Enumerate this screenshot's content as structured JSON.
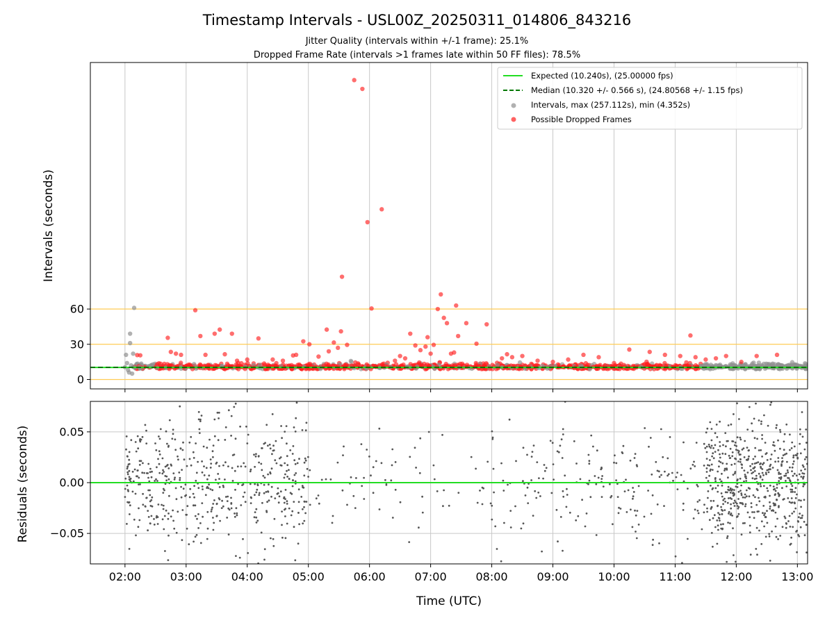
{
  "chart_data": {
    "title": "Timestamp Intervals - USL00Z_20250311_014806_843216",
    "subtitles": [
      "Jitter Quality (intervals within +/-1 frame): 25.1%",
      "Dropped Frame Rate (intervals >1 frames late within 50 FF files): 78.5%"
    ],
    "x_axis": {
      "label": "Time (UTC)",
      "type": "time",
      "range": [
        "01:26",
        "13:10"
      ],
      "ticks": [
        "02:00",
        "03:00",
        "04:00",
        "05:00",
        "06:00",
        "07:00",
        "08:00",
        "09:00",
        "10:00",
        "11:00",
        "12:00",
        "13:00"
      ],
      "grid": true
    },
    "panels": [
      {
        "type": "scatter",
        "ylabel": "Intervals (seconds)",
        "ylim": [
          -8,
          270
        ],
        "y_ticks": [
          "0",
          "30",
          "60"
        ],
        "y_tick_values": [
          0,
          30,
          60
        ],
        "reference_lines": [
          0,
          30,
          60
        ],
        "reference_color": "#ffcc55",
        "legend_position": "top-right",
        "series": [
          {
            "name": "Expected (10.240s), (25.00000 fps)",
            "kind": "hline",
            "value": 10.24,
            "color": "#22dd22",
            "style": "solid"
          },
          {
            "name": "Median (10.320 +/- 0.566 s), (24.80568 +/- 1.15 fps)",
            "kind": "hline",
            "value": 10.32,
            "color": "#007700",
            "style": "dashed"
          },
          {
            "name": "Intervals, max (257.112s), min (4.352s)",
            "kind": "scatter",
            "color": "#909090",
            "points": [
              [
                "02:00",
                10.5
              ],
              [
                "02:01",
                21
              ],
              [
                "02:02",
                14
              ],
              [
                "02:03",
                8
              ],
              [
                "02:04",
                6
              ],
              [
                "02:05",
                39
              ],
              [
                "02:05",
                31
              ],
              [
                "02:06",
                12
              ],
              [
                "02:07",
                5
              ],
              [
                "02:08",
                22
              ],
              [
                "02:09",
                61
              ],
              [
                "02:10",
                10
              ],
              [
                "02:15",
                9.5
              ],
              [
                "02:25",
                11
              ],
              [
                "02:40",
                10.2
              ],
              [
                "02:55",
                10.4
              ],
              [
                "03:10",
                10.3
              ],
              [
                "04:10",
                10.4
              ],
              [
                "06:40",
                10.3
              ],
              [
                "08:10",
                10.3
              ],
              [
                "11:30",
                10.3
              ],
              [
                "11:45",
                10.4
              ],
              [
                "12:00",
                10.2
              ],
              [
                "12:15",
                10.5
              ],
              [
                "12:30",
                10.3
              ],
              [
                "12:45",
                10.4
              ],
              [
                "13:00",
                10.3
              ],
              [
                "13:08",
                10.5
              ]
            ]
          },
          {
            "name": "Possible Dropped Frames",
            "kind": "scatter",
            "color": "#ff2020",
            "points": [
              [
                "02:12",
                20.8
              ],
              [
                "02:15",
                20.6
              ],
              [
                "02:42",
                35.5
              ],
              [
                "02:45",
                23.5
              ],
              [
                "02:50",
                22
              ],
              [
                "02:55",
                21
              ],
              [
                "03:09",
                59
              ],
              [
                "03:14",
                37
              ],
              [
                "03:19",
                21
              ],
              [
                "03:28",
                39
              ],
              [
                "03:33",
                42.5
              ],
              [
                "03:38",
                21.5
              ],
              [
                "03:45",
                39
              ],
              [
                "03:50",
                16
              ],
              [
                "04:00",
                17
              ],
              [
                "04:11",
                35
              ],
              [
                "04:25",
                17
              ],
              [
                "04:35",
                16
              ],
              [
                "04:45",
                20.5
              ],
              [
                "04:48",
                21
              ],
              [
                "04:55",
                32.5
              ],
              [
                "05:01",
                30
              ],
              [
                "05:10",
                19.5
              ],
              [
                "05:18",
                42.5
              ],
              [
                "05:20",
                24
              ],
              [
                "05:25",
                31.5
              ],
              [
                "05:29",
                27
              ],
              [
                "05:32",
                41
              ],
              [
                "05:33",
                87.5
              ],
              [
                "05:38",
                29.5
              ],
              [
                "05:45",
                255
              ],
              [
                "05:53",
                247.5
              ],
              [
                "05:58",
                134
              ],
              [
                "06:02",
                60.5
              ],
              [
                "06:12",
                145
              ],
              [
                "06:25",
                16
              ],
              [
                "06:30",
                20
              ],
              [
                "06:35",
                18
              ],
              [
                "06:40",
                39
              ],
              [
                "06:45",
                29
              ],
              [
                "06:50",
                25
              ],
              [
                "06:55",
                28
              ],
              [
                "06:57",
                36
              ],
              [
                "07:00",
                22
              ],
              [
                "07:03",
                29.5
              ],
              [
                "07:07",
                60
              ],
              [
                "07:10",
                72.5
              ],
              [
                "07:13",
                52.5
              ],
              [
                "07:16",
                48
              ],
              [
                "07:20",
                22
              ],
              [
                "07:23",
                23
              ],
              [
                "07:25",
                63
              ],
              [
                "07:27",
                37
              ],
              [
                "07:35",
                48
              ],
              [
                "07:45",
                30.5
              ],
              [
                "07:55",
                47
              ],
              [
                "08:10",
                18
              ],
              [
                "08:15",
                21.5
              ],
              [
                "08:20",
                19
              ],
              [
                "08:30",
                20
              ],
              [
                "08:45",
                16
              ],
              [
                "09:00",
                15
              ],
              [
                "09:15",
                17
              ],
              [
                "09:30",
                21
              ],
              [
                "09:45",
                19
              ],
              [
                "10:00",
                14
              ],
              [
                "10:15",
                25.5
              ],
              [
                "10:30",
                13
              ],
              [
                "10:35",
                23.5
              ],
              [
                "10:50",
                21
              ],
              [
                "11:05",
                20
              ],
              [
                "11:15",
                37.5
              ],
              [
                "11:20",
                19
              ],
              [
                "11:30",
                17
              ],
              [
                "11:40",
                18
              ],
              [
                "11:50",
                20
              ],
              [
                "12:05",
                15
              ],
              [
                "12:20",
                20
              ],
              [
                "12:40",
                21
              ]
            ]
          }
        ]
      },
      {
        "type": "scatter",
        "ylabel": "Residuals (seconds)",
        "ylim": [
          -0.08,
          0.08
        ],
        "y_ticks": [
          "0.05",
          "0.00",
          "−0.05"
        ],
        "y_tick_values": [
          0.05,
          0.0,
          -0.05
        ],
        "series": [
          {
            "kind": "hline",
            "value": 0.0,
            "color": "#22dd22",
            "style": "solid"
          },
          {
            "kind": "scatter",
            "color": "#555555",
            "range": [
              -0.08,
              0.08
            ]
          }
        ]
      }
    ]
  }
}
